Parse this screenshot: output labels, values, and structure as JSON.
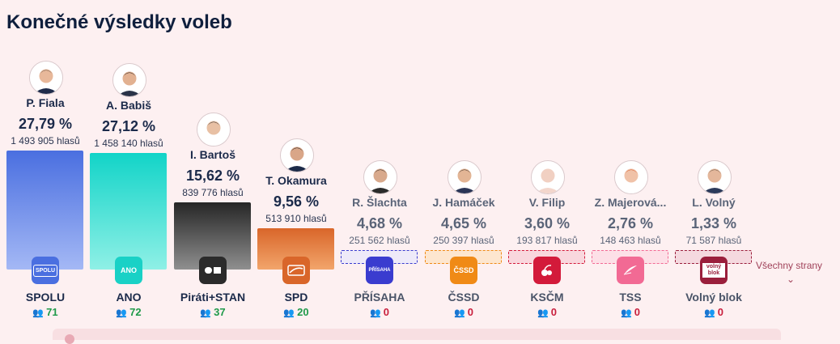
{
  "header": {
    "title": "Konečné výsledky voleb"
  },
  "all_parties": {
    "label": "Všechny strany",
    "chevron_icon": "chevron-down-icon"
  },
  "chart_data": {
    "type": "bar",
    "title": "Konečné výsledky voleb",
    "xlabel": "",
    "ylabel": "",
    "unit": "%",
    "categories": [
      "SPOLU",
      "ANO",
      "Piráti+STAN",
      "SPD",
      "PŘÍSAHA",
      "ČSSD",
      "KSČM",
      "TSS",
      "Volný blok"
    ],
    "values": [
      27.79,
      27.12,
      15.62,
      9.56,
      4.68,
      4.65,
      3.6,
      2.76,
      1.33
    ],
    "candidates": [
      "P. Fiala",
      "A. Babiš",
      "I. Bartoš",
      "T. Okamura",
      "R. Šlachta",
      "J. Hamáček",
      "V. Filip",
      "Z. Majerová...",
      "L. Volný"
    ],
    "percent_labels": [
      "27,79 %",
      "27,12 %",
      "15,62 %",
      "9,56 %",
      "4,68 %",
      "4,65 %",
      "3,60 %",
      "2,76 %",
      "1,33 %"
    ],
    "votes_labels": [
      "1 493 905 hlasů",
      "1 458 140 hlasů",
      "839 776 hlasů",
      "513 910 hlasů",
      "251 562 hlasů",
      "250 397 hlasů",
      "193 817 hlasů",
      "148 463 hlasů",
      "71 587 hlasů"
    ],
    "votes": [
      1493905,
      1458140,
      839776,
      513910,
      251562,
      250397,
      193817,
      148463,
      71587
    ],
    "seats": [
      71,
      72,
      37,
      20,
      0,
      0,
      0,
      0,
      0
    ],
    "seat_labels": [
      "71",
      "72",
      "37",
      "20",
      "0",
      "0",
      "0",
      "0",
      "0"
    ],
    "logo_texts": [
      "SPOLU",
      "ANO",
      "",
      "",
      "PŘÍSAHA",
      "ČSSD",
      "",
      "",
      "volný blok"
    ],
    "logo_icons": [
      "spolu-logo-icon",
      "ano-logo-icon",
      "pirati-stan-logo-icon",
      "spd-logo-icon",
      "prisaha-logo-icon",
      "cssd-logo-icon",
      "kscm-logo-icon",
      "tss-logo-icon",
      "volny-blok-logo-icon"
    ],
    "photo_icons": [
      "fiala-photo-icon",
      "babis-photo-icon",
      "bartos-photo-icon",
      "okamura-photo-icon",
      "slachta-photo-icon",
      "hamacek-photo-icon",
      "filip-photo-icon",
      "majerova-photo-icon",
      "volny-photo-icon"
    ],
    "colors": [
      "#4a6fe0",
      "#19d1c6",
      "#2b2b2b",
      "#d9662a",
      "#3a3ccf",
      "#f08a16",
      "#d31a3a",
      "#f26a94",
      "#9a1f3c"
    ],
    "bar_top_colors": [
      "#4a6fe0",
      "#12d4c8",
      "#262626",
      "#d9662a",
      "#3a3ccf",
      "#f08a16",
      "#d31a3a",
      "#f26a94",
      "#9a1f3c"
    ],
    "bar_bottom_colors": [
      "#a4b8f5",
      "#8ff0e6",
      "#8f8f8f",
      "#f2a56b",
      "#eeeaf9",
      "#fde6cf",
      "#f9d7dd",
      "#fde0e7",
      "#f5d9df"
    ],
    "elected_seat_color": "#1f9a4a",
    "no_seat_color": "#c81e3c"
  }
}
